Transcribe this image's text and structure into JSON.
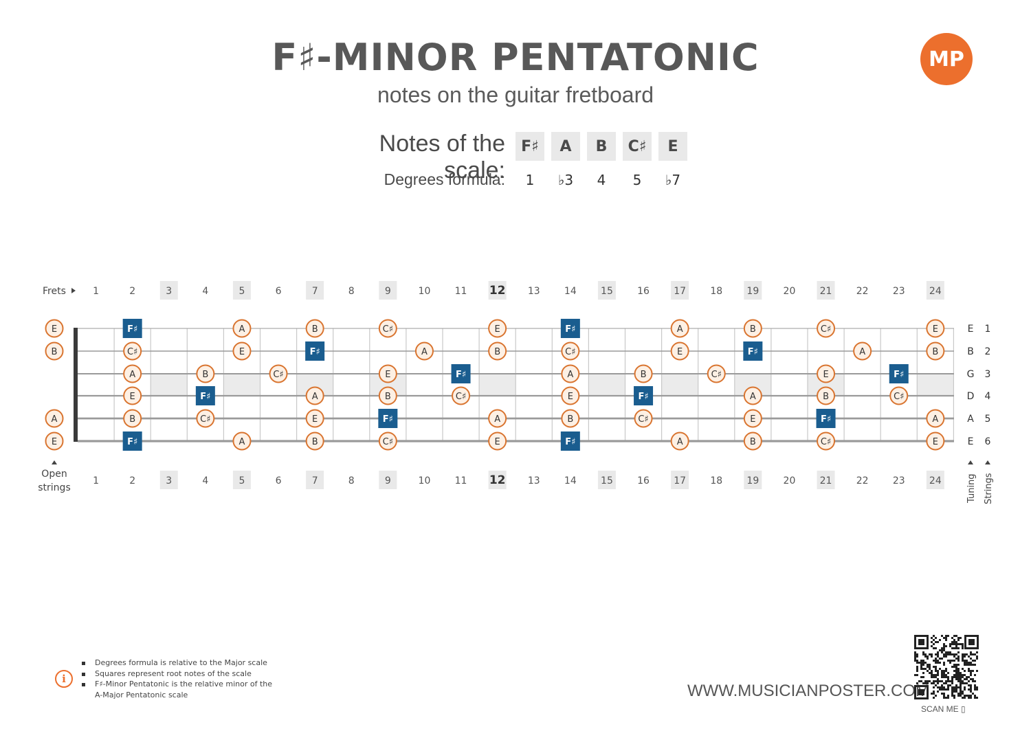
{
  "header": {
    "title": "F♯-MINOR PENTATONIC",
    "subtitle": "notes on the guitar fretboard",
    "logo_text": "MP"
  },
  "scale": {
    "notes_label": "Notes of the scale:",
    "degrees_label": "Degrees formula:",
    "notes": [
      "F♯",
      "A",
      "B",
      "C♯",
      "E"
    ],
    "degrees": [
      "1",
      "♭3",
      "4",
      "5",
      "♭7"
    ]
  },
  "fretboard": {
    "frets_label": "Frets",
    "open_label_1": "Open",
    "open_label_2": "strings",
    "tuning_label": "Tuning",
    "strings_label": "Strings",
    "fret_numbers": [
      1,
      2,
      3,
      4,
      5,
      6,
      7,
      8,
      9,
      10,
      11,
      12,
      13,
      14,
      15,
      16,
      17,
      18,
      19,
      20,
      21,
      22,
      23,
      24
    ],
    "highlighted_frets": [
      3,
      5,
      7,
      9,
      12,
      15,
      17,
      19,
      21,
      24
    ],
    "bold_fret": 12,
    "shaded_frets": [
      3,
      5,
      7,
      9,
      12,
      15,
      17,
      19,
      21,
      24
    ],
    "root_note": "F♯",
    "colors": {
      "root": "#1a5d8f",
      "note_border": "#d9742f",
      "note_fill": "#fdf0e4",
      "shade": "#ebebeb"
    },
    "strings": [
      {
        "number": "1",
        "tuning": "E",
        "open": "E",
        "notes": [
          [
            2,
            "F♯"
          ],
          [
            5,
            "A"
          ],
          [
            7,
            "B"
          ],
          [
            9,
            "C♯"
          ],
          [
            12,
            "E"
          ],
          [
            14,
            "F♯"
          ],
          [
            17,
            "A"
          ],
          [
            19,
            "B"
          ],
          [
            21,
            "C♯"
          ],
          [
            24,
            "E"
          ]
        ]
      },
      {
        "number": "2",
        "tuning": "B",
        "open": "B",
        "notes": [
          [
            2,
            "C♯"
          ],
          [
            5,
            "E"
          ],
          [
            7,
            "F♯"
          ],
          [
            10,
            "A"
          ],
          [
            12,
            "B"
          ],
          [
            14,
            "C♯"
          ],
          [
            17,
            "E"
          ],
          [
            19,
            "F♯"
          ],
          [
            22,
            "A"
          ],
          [
            24,
            "B"
          ]
        ]
      },
      {
        "number": "3",
        "tuning": "G",
        "open": "",
        "notes": [
          [
            2,
            "A"
          ],
          [
            4,
            "B"
          ],
          [
            6,
            "C♯"
          ],
          [
            9,
            "E"
          ],
          [
            11,
            "F♯"
          ],
          [
            14,
            "A"
          ],
          [
            16,
            "B"
          ],
          [
            18,
            "C♯"
          ],
          [
            21,
            "E"
          ],
          [
            23,
            "F♯"
          ]
        ]
      },
      {
        "number": "4",
        "tuning": "D",
        "open": "",
        "notes": [
          [
            2,
            "E"
          ],
          [
            4,
            "F♯"
          ],
          [
            7,
            "A"
          ],
          [
            9,
            "B"
          ],
          [
            11,
            "C♯"
          ],
          [
            14,
            "E"
          ],
          [
            16,
            "F♯"
          ],
          [
            19,
            "A"
          ],
          [
            21,
            "B"
          ],
          [
            23,
            "C♯"
          ]
        ]
      },
      {
        "number": "5",
        "tuning": "A",
        "open": "A",
        "notes": [
          [
            2,
            "B"
          ],
          [
            4,
            "C♯"
          ],
          [
            7,
            "E"
          ],
          [
            9,
            "F♯"
          ],
          [
            12,
            "A"
          ],
          [
            14,
            "B"
          ],
          [
            16,
            "C♯"
          ],
          [
            19,
            "E"
          ],
          [
            21,
            "F♯"
          ],
          [
            24,
            "A"
          ]
        ]
      },
      {
        "number": "6",
        "tuning": "E",
        "open": "E",
        "notes": [
          [
            2,
            "F♯"
          ],
          [
            5,
            "A"
          ],
          [
            7,
            "B"
          ],
          [
            9,
            "C♯"
          ],
          [
            12,
            "E"
          ],
          [
            14,
            "F♯"
          ],
          [
            17,
            "A"
          ],
          [
            19,
            "B"
          ],
          [
            21,
            "C♯"
          ],
          [
            24,
            "E"
          ]
        ]
      }
    ]
  },
  "footer": {
    "notes": [
      "Degrees formula is relative to the Major scale",
      "Squares represent root notes of the scale",
      "F♯-Minor Pentatonic is the relative minor of the",
      "A-Major Pentatonic scale"
    ],
    "website": "WWW.MUSICIANPOSTER.COM",
    "scan_label": "SCAN ME"
  }
}
